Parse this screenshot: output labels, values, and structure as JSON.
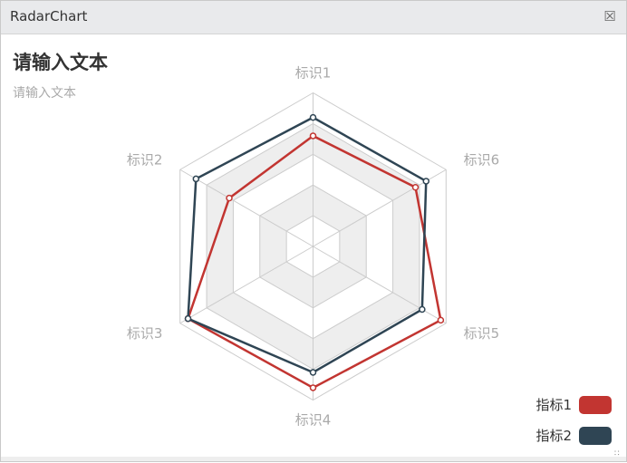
{
  "window": {
    "title": "RadarChart",
    "close_icon": "close-icon"
  },
  "chart_data": {
    "type": "radar",
    "title": "请输入文本",
    "subtitle": "请输入文本",
    "indicators": [
      "标识1",
      "标识2",
      "标识3",
      "标识4",
      "标识5",
      "标识6"
    ],
    "max": 100,
    "split_number": 5,
    "series": [
      {
        "name": "指标1",
        "color": "#c23531",
        "values": [
          72,
          63,
          94,
          92,
          96,
          77
        ]
      },
      {
        "name": "指标2",
        "color": "#2f4554",
        "values": [
          84,
          88,
          94,
          82,
          82,
          85
        ]
      }
    ],
    "legend_position": "bottom-right",
    "split_area_colors": [
      "#ffffff",
      "#eeeeee"
    ],
    "grid_color": "#cccccc"
  }
}
